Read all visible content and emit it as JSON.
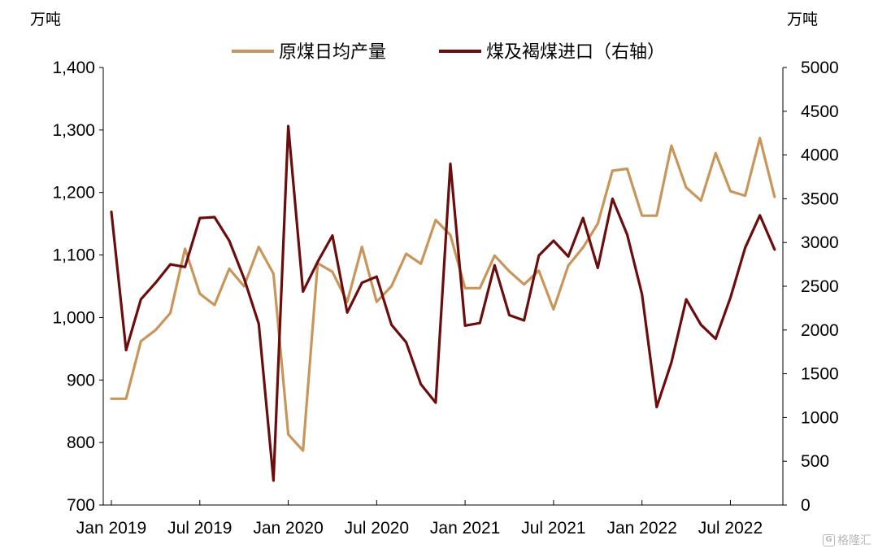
{
  "chart_data": {
    "type": "line",
    "left_axis_unit": "万吨",
    "right_axis_unit": "万吨",
    "left_ylim": [
      700,
      1400
    ],
    "right_ylim": [
      0,
      5000
    ],
    "left_ticks": [
      "1,400",
      "1,300",
      "1,200",
      "1,100",
      "1,000",
      "900",
      "800",
      "700"
    ],
    "right_ticks": [
      "5000",
      "4500",
      "4000",
      "3500",
      "3000",
      "2500",
      "2000",
      "1500",
      "1000",
      "500",
      "0"
    ],
    "x_tick_labels": [
      "Jan 2019",
      "Jul 2019",
      "Jan 2020",
      "Jul 2020",
      "Jan 2021",
      "Jul 2021",
      "Jan 2022",
      "Jul 2022"
    ],
    "x": [
      "2019-01",
      "2019-02",
      "2019-03",
      "2019-04",
      "2019-05",
      "2019-06",
      "2019-07",
      "2019-08",
      "2019-09",
      "2019-10",
      "2019-11",
      "2019-12",
      "2020-01",
      "2020-02",
      "2020-03",
      "2020-04",
      "2020-05",
      "2020-06",
      "2020-07",
      "2020-08",
      "2020-09",
      "2020-10",
      "2020-11",
      "2020-12",
      "2021-01",
      "2021-02",
      "2021-03",
      "2021-04",
      "2021-05",
      "2021-06",
      "2021-07",
      "2021-08",
      "2021-09",
      "2021-10",
      "2021-11",
      "2021-12",
      "2022-01",
      "2022-02",
      "2022-03",
      "2022-04",
      "2022-05",
      "2022-06",
      "2022-07",
      "2022-08",
      "2022-09",
      "2022-10"
    ],
    "grid": false,
    "legend_position": "top",
    "series": [
      {
        "name": "原煤日均产量",
        "axis": "left",
        "color": "#c8965a",
        "values": [
          870,
          870,
          962,
          980,
          1007,
          1110,
          1038,
          1020,
          1078,
          1050,
          1113,
          1070,
          813,
          787,
          1087,
          1073,
          1025,
          1113,
          1025,
          1050,
          1102,
          1086,
          1156,
          1132,
          1047,
          1047,
          1099,
          1074,
          1053,
          1075,
          1013,
          1083,
          1112,
          1150,
          1235,
          1238,
          1163,
          1163,
          1275,
          1208,
          1187,
          1263,
          1202,
          1195,
          1287,
          1193
        ]
      },
      {
        "name": "煤及褐煤进口（右轴）",
        "axis": "right",
        "color": "#6b0d0d",
        "values": [
          3350,
          1770,
          2350,
          2540,
          2750,
          2720,
          3280,
          3290,
          3020,
          2590,
          2070,
          280,
          4330,
          2440,
          2780,
          3080,
          2200,
          2540,
          2610,
          2060,
          1860,
          1380,
          1170,
          3900,
          2050,
          2080,
          2740,
          2170,
          2110,
          2850,
          3020,
          2840,
          3280,
          2710,
          3500,
          3090,
          2410,
          1120,
          1630,
          2350,
          2060,
          1900,
          2370,
          2940,
          3310,
          2920
        ]
      }
    ]
  }
}
